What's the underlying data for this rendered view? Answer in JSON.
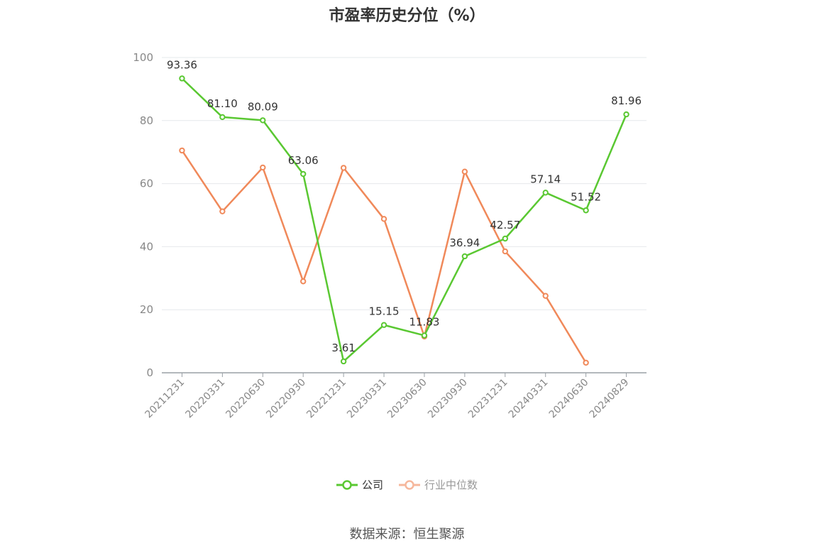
{
  "title": "市盈率历史分位（%）",
  "source": "数据来源：恒生聚源",
  "colors": {
    "company": "#5ac832",
    "industry": "#f0895a",
    "industry_legend": "#f6b79c",
    "axis": "#9aa0a6",
    "grid": "#e6e8eb",
    "label": "#333333",
    "tick": "#888888"
  },
  "chart_data": {
    "type": "line",
    "title": "市盈率历史分位（%）",
    "categories": [
      "20211231",
      "20220331",
      "20220630",
      "20220930",
      "20221231",
      "20230331",
      "20230630",
      "20230930",
      "20231231",
      "20240331",
      "20240630",
      "20240829"
    ],
    "ylim": [
      0,
      100
    ],
    "yticks": [
      0,
      20,
      40,
      60,
      80,
      100
    ],
    "grid": true,
    "legend_position": "bottom",
    "series": [
      {
        "name": "公司",
        "values": [
          93.36,
          81.1,
          80.09,
          63.06,
          3.61,
          15.15,
          11.83,
          36.94,
          42.57,
          57.14,
          51.52,
          81.96
        ],
        "labels": [
          "93.36",
          "81.10",
          "80.09",
          "63.06",
          "3.61",
          "15.15",
          "11.83",
          "36.94",
          "42.57",
          "57.14",
          "51.52",
          "81.96"
        ]
      },
      {
        "name": "行业中位数",
        "values": [
          70.5,
          51.2,
          65.1,
          29.0,
          65.0,
          48.8,
          11.5,
          63.8,
          38.5,
          24.4,
          3.2,
          null
        ]
      }
    ]
  }
}
